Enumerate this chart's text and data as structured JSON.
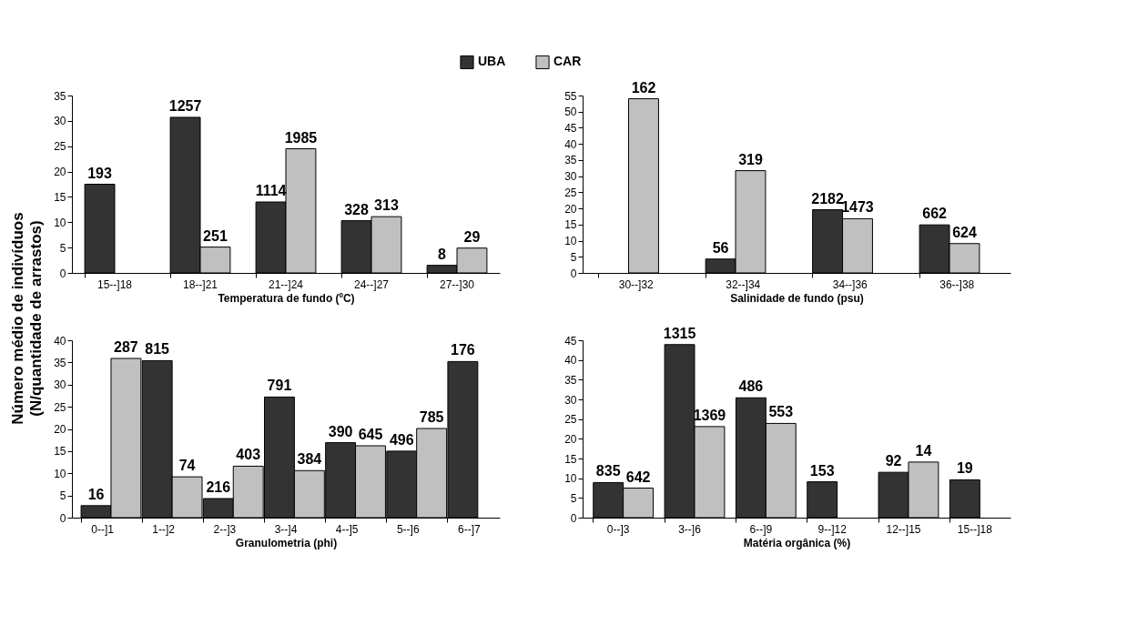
{
  "chart_data": [
    {
      "type": "bar",
      "xlabel": "Temperatura de fundo (ºC)",
      "ylabel": "Número médio de indivíduos\n(N/quantidade de arrastos)",
      "legend": "top",
      "grid": false,
      "categories": [
        "15--]18",
        "18--]21",
        "21--]24",
        "24--]27",
        "27--]30"
      ],
      "ylim": [
        0,
        35
      ],
      "yticks": [
        0,
        5,
        10,
        15,
        20,
        25,
        30,
        35
      ],
      "series": [
        {
          "name": "UBA",
          "color": "#333333",
          "values": [
            17.5,
            30.7,
            14,
            10.3,
            1.5
          ]
        },
        {
          "name": "CAR",
          "color": "#c0c0c0",
          "values": [
            null,
            5.1,
            24.5,
            11.1,
            4.9
          ]
        }
      ],
      "annotations": [
        "193",
        "1257",
        "251",
        "1114",
        "1985",
        "328",
        "313",
        "8",
        "29"
      ]
    },
    {
      "type": "bar",
      "xlabel": "Salinidade de fundo (psu)",
      "grid": false,
      "categories": [
        "30--]32",
        "32--]34",
        "34--]36",
        "36--]38"
      ],
      "ylim": [
        0,
        55
      ],
      "yticks": [
        0,
        5,
        10,
        15,
        20,
        25,
        30,
        35,
        40,
        45,
        50,
        55
      ],
      "series": [
        {
          "name": "UBA",
          "color": "#333333",
          "values": [
            null,
            4.3,
            19.6,
            14.9
          ]
        },
        {
          "name": "CAR",
          "color": "#c0c0c0",
          "values": [
            54,
            31.7,
            16.8,
            9.1
          ]
        }
      ],
      "annotations": [
        "162",
        "56",
        "319",
        "2182",
        "1473",
        "662",
        "624"
      ]
    },
    {
      "type": "bar",
      "xlabel": "Granulometria (phi)",
      "grid": false,
      "categories": [
        "0--]1",
        "1--]2",
        "2--]3",
        "3--]4",
        "4--]5",
        "5--]6",
        "6--]7"
      ],
      "ylim": [
        0,
        40
      ],
      "yticks": [
        0,
        5,
        10,
        15,
        20,
        25,
        30,
        35,
        40
      ],
      "series": [
        {
          "name": "UBA",
          "color": "#333333",
          "values": [
            2.7,
            35.4,
            4.3,
            27.2,
            16.9,
            15,
            35.2
          ]
        },
        {
          "name": "CAR",
          "color": "#c0c0c0",
          "values": [
            35.9,
            9.2,
            11.6,
            10.6,
            16.2,
            20.1,
            null
          ]
        }
      ],
      "annotations": [
        "16",
        "287",
        "815",
        "74",
        "216",
        "403",
        "791",
        "384",
        "390",
        "645",
        "496",
        "785",
        "176"
      ]
    },
    {
      "type": "bar",
      "xlabel": "Matéria orgânica (%)",
      "grid": false,
      "categories": [
        "0--]3",
        "3--]6",
        "6--]9",
        "9--]12",
        "12--]15",
        "15--]18"
      ],
      "ylim": [
        0,
        45
      ],
      "yticks": [
        0,
        5,
        10,
        15,
        20,
        25,
        30,
        35,
        40,
        45
      ],
      "series": [
        {
          "name": "UBA",
          "color": "#333333",
          "values": [
            8.9,
            43.9,
            30.4,
            9.1,
            11.5,
            9.6
          ]
        },
        {
          "name": "CAR",
          "color": "#c0c0c0",
          "values": [
            7.5,
            23.1,
            23.9,
            null,
            14.1,
            null
          ]
        }
      ],
      "annotations": [
        "835",
        "642",
        "1315",
        "1369",
        "486",
        "553",
        "153",
        "92",
        "14",
        "19"
      ]
    }
  ]
}
